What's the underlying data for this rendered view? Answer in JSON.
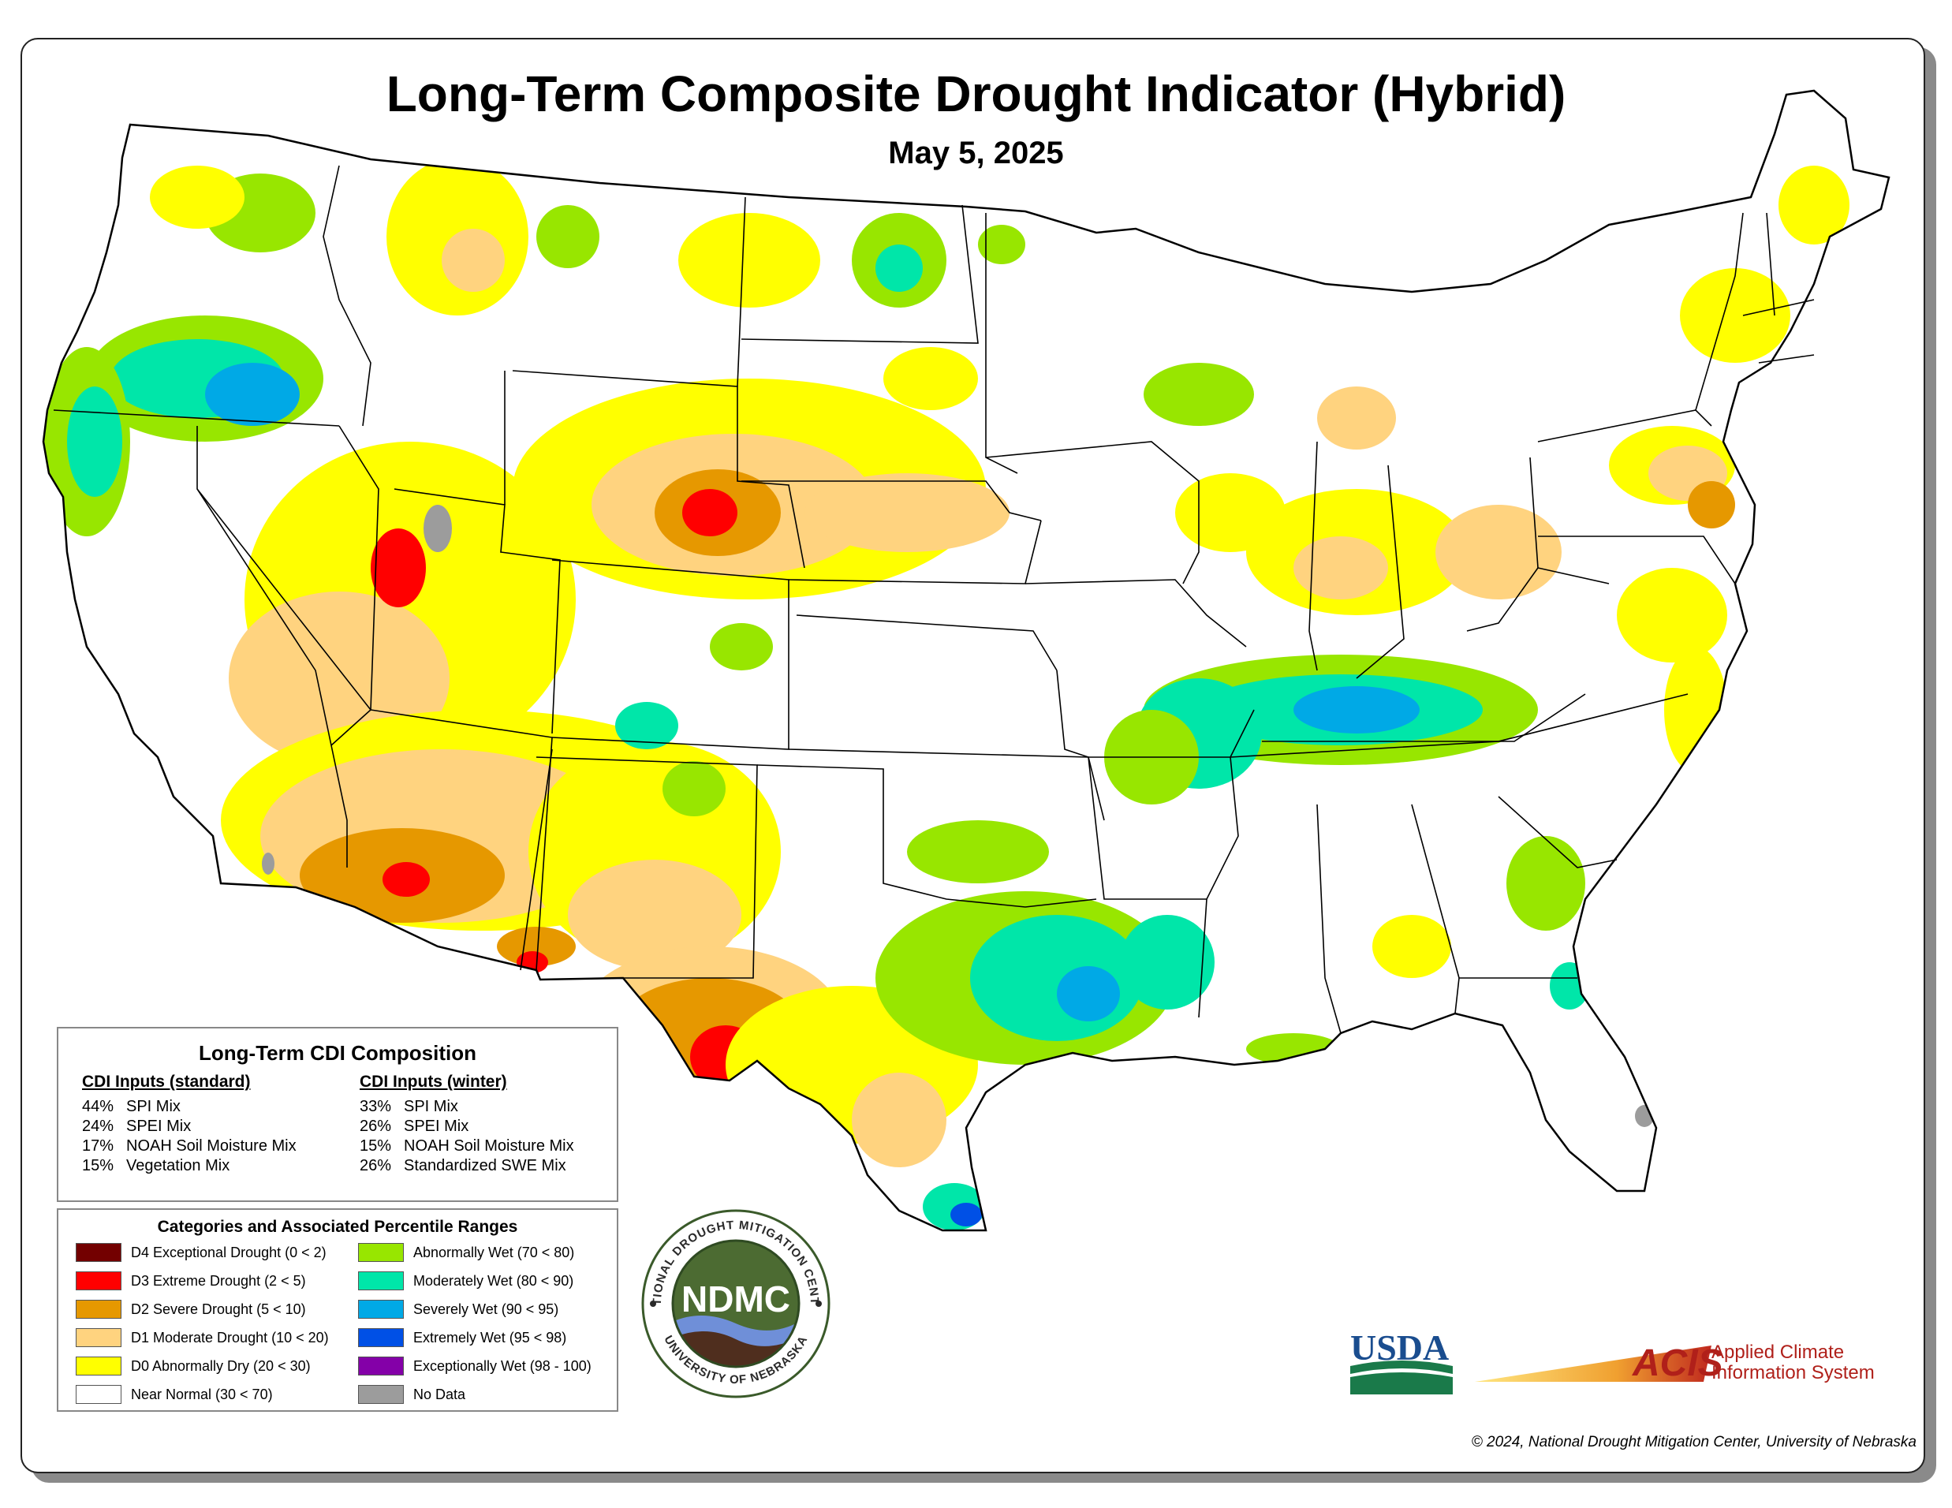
{
  "title": "Long-Term Composite Drought Indicator (Hybrid)",
  "subtitle": "May 5, 2025",
  "composition": {
    "title": "Long-Term CDI Composition",
    "standard": {
      "heading": "CDI Inputs (standard)",
      "rows": [
        {
          "pct": "44%",
          "name": "SPI Mix"
        },
        {
          "pct": "24%",
          "name": "SPEI Mix"
        },
        {
          "pct": "17%",
          "name": "NOAH Soil Moisture Mix"
        },
        {
          "pct": "15%",
          "name": "Vegetation Mix"
        }
      ]
    },
    "winter": {
      "heading": "CDI Inputs (winter)",
      "rows": [
        {
          "pct": "33%",
          "name": "SPI Mix"
        },
        {
          "pct": "26%",
          "name": "SPEI Mix"
        },
        {
          "pct": "15%",
          "name": "NOAH Soil Moisture Mix"
        },
        {
          "pct": "26%",
          "name": "Standardized SWE Mix"
        }
      ]
    }
  },
  "legend": {
    "title": "Categories and Associated Percentile Ranges",
    "left": [
      {
        "label": "D4 Exceptional Drought (0 < 2)",
        "color": "#730000"
      },
      {
        "label": "D3 Extreme Drought (2 < 5)",
        "color": "#ff0000"
      },
      {
        "label": "D2 Severe Drought (5 < 10)",
        "color": "#e69800"
      },
      {
        "label": "D1 Moderate Drought (10 < 20)",
        "color": "#ffd37f"
      },
      {
        "label": "D0 Abnormally Dry (20 < 30)",
        "color": "#ffff00"
      },
      {
        "label": "Near Normal (30 < 70)",
        "color": "#ffffff"
      }
    ],
    "right": [
      {
        "label": "Abnormally Wet (70 < 80)",
        "color": "#98e600"
      },
      {
        "label": "Moderately Wet (80 < 90)",
        "color": "#00e6a9"
      },
      {
        "label": "Severely Wet (90 < 95)",
        "color": "#00a9e6"
      },
      {
        "label": "Extremely Wet (95 < 98)",
        "color": "#0050e6"
      },
      {
        "label": "Exceptionally Wet (98 - 100)",
        "color": "#8400a8"
      },
      {
        "label": "No Data",
        "color": "#9c9c9c"
      }
    ]
  },
  "logos": {
    "ndmc_ring_top": "NATIONAL DROUGHT MITIGATION CENTER",
    "ndmc_ring_bottom": "UNIVERSITY OF NEBRASKA",
    "ndmc_center": "NDMC",
    "usda": "USDA",
    "acis": "ACIS",
    "acis_line1": "Applied Climate",
    "acis_line2": "Information System"
  },
  "copyright": "© 2024, National Drought Mitigation Center, University of Nebraska"
}
